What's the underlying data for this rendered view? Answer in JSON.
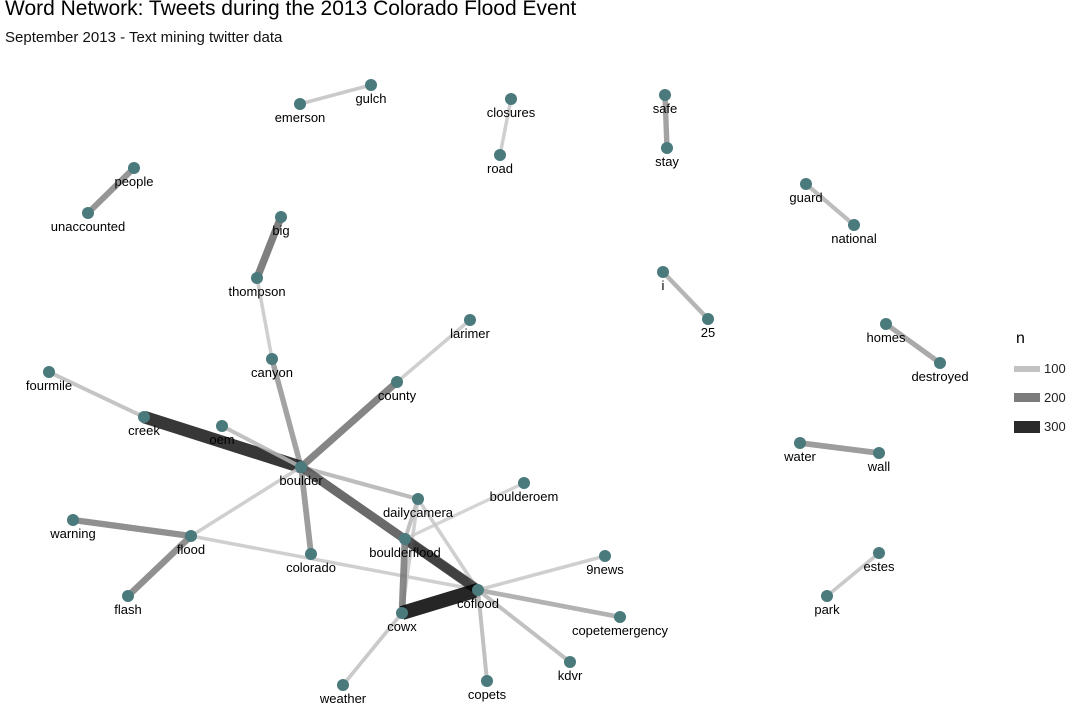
{
  "header": {
    "title": "Word Network: Tweets during the 2013 Colorado Flood Event",
    "subtitle": "September 2013 - Text mining twitter data"
  },
  "colors": {
    "node": "#4a7a7c",
    "edge_low": "#cccccc",
    "edge_high": "#000000",
    "background": "#ffffff"
  },
  "legend": {
    "title": "n",
    "items": [
      {
        "label": "100",
        "value": 100
      },
      {
        "label": "200",
        "value": 200
      },
      {
        "label": "300",
        "value": 300
      }
    ]
  },
  "network": {
    "nodes": [
      {
        "id": "emerson",
        "label": "emerson"
      },
      {
        "id": "gulch",
        "label": "gulch"
      },
      {
        "id": "closures",
        "label": "closures"
      },
      {
        "id": "road",
        "label": "road"
      },
      {
        "id": "safe",
        "label": "safe"
      },
      {
        "id": "stay",
        "label": "stay"
      },
      {
        "id": "people",
        "label": "people"
      },
      {
        "id": "unaccounted",
        "label": "unaccounted"
      },
      {
        "id": "guard",
        "label": "guard"
      },
      {
        "id": "national",
        "label": "national"
      },
      {
        "id": "big",
        "label": "big"
      },
      {
        "id": "thompson",
        "label": "thompson"
      },
      {
        "id": "i",
        "label": "i"
      },
      {
        "id": "n25",
        "label": "25"
      },
      {
        "id": "larimer",
        "label": "larimer"
      },
      {
        "id": "homes",
        "label": "homes"
      },
      {
        "id": "destroyed",
        "label": "destroyed"
      },
      {
        "id": "canyon",
        "label": "canyon"
      },
      {
        "id": "fourmile",
        "label": "fourmile"
      },
      {
        "id": "county",
        "label": "county"
      },
      {
        "id": "creek",
        "label": "creek"
      },
      {
        "id": "oem",
        "label": "oem"
      },
      {
        "id": "water",
        "label": "water"
      },
      {
        "id": "wall",
        "label": "wall"
      },
      {
        "id": "boulder",
        "label": "boulder"
      },
      {
        "id": "boulderoem",
        "label": "boulderoem"
      },
      {
        "id": "dailycamera",
        "label": "dailycamera"
      },
      {
        "id": "warning",
        "label": "warning"
      },
      {
        "id": "flood",
        "label": "flood"
      },
      {
        "id": "boulderflood",
        "label": "boulderflood"
      },
      {
        "id": "colorado",
        "label": "colorado"
      },
      {
        "id": "estes",
        "label": "estes"
      },
      {
        "id": "n9news",
        "label": "9news"
      },
      {
        "id": "coflood",
        "label": "coflood"
      },
      {
        "id": "flash",
        "label": "flash"
      },
      {
        "id": "cowx",
        "label": "cowx"
      },
      {
        "id": "park",
        "label": "park"
      },
      {
        "id": "copetemergency",
        "label": "copetemergency"
      },
      {
        "id": "kdvr",
        "label": "kdvr"
      },
      {
        "id": "weather",
        "label": "weather"
      },
      {
        "id": "copets",
        "label": "copets"
      }
    ],
    "edges": [
      {
        "source": "emerson",
        "target": "gulch",
        "n": 60
      },
      {
        "source": "closures",
        "target": "road",
        "n": 55
      },
      {
        "source": "safe",
        "target": "stay",
        "n": 110
      },
      {
        "source": "people",
        "target": "unaccounted",
        "n": 130
      },
      {
        "source": "guard",
        "target": "national",
        "n": 75
      },
      {
        "source": "big",
        "target": "thompson",
        "n": 170
      },
      {
        "source": "i",
        "target": "n25",
        "n": 85
      },
      {
        "source": "homes",
        "target": "destroyed",
        "n": 100
      },
      {
        "source": "water",
        "target": "wall",
        "n": 120
      },
      {
        "source": "estes",
        "target": "park",
        "n": 60
      },
      {
        "source": "thompson",
        "target": "canyon",
        "n": 55
      },
      {
        "source": "canyon",
        "target": "boulder",
        "n": 110
      },
      {
        "source": "larimer",
        "target": "county",
        "n": 55
      },
      {
        "source": "county",
        "target": "boulder",
        "n": 160
      },
      {
        "source": "fourmile",
        "target": "creek",
        "n": 65
      },
      {
        "source": "creek",
        "target": "boulder",
        "n": 320
      },
      {
        "source": "oem",
        "target": "boulder",
        "n": 70
      },
      {
        "source": "boulder",
        "target": "dailycamera",
        "n": 75
      },
      {
        "source": "boulder",
        "target": "colorado",
        "n": 120
      },
      {
        "source": "boulder",
        "target": "coflood",
        "n": 210
      },
      {
        "source": "boulder",
        "target": "flood",
        "n": 55
      },
      {
        "source": "warning",
        "target": "flood",
        "n": 140
      },
      {
        "source": "flood",
        "target": "flash",
        "n": 140
      },
      {
        "source": "flood",
        "target": "coflood",
        "n": 55
      },
      {
        "source": "boulderoem",
        "target": "boulderflood",
        "n": 50
      },
      {
        "source": "dailycamera",
        "target": "boulderflood",
        "n": 70
      },
      {
        "source": "dailycamera",
        "target": "coflood",
        "n": 55
      },
      {
        "source": "dailycamera",
        "target": "cowx",
        "n": 55
      },
      {
        "source": "boulderflood",
        "target": "coflood",
        "n": 250
      },
      {
        "source": "boulderflood",
        "target": "cowx",
        "n": 150
      },
      {
        "source": "cowx",
        "target": "coflood",
        "n": 360
      },
      {
        "source": "coflood",
        "target": "n9news",
        "n": 55
      },
      {
        "source": "coflood",
        "target": "copetemergency",
        "n": 90
      },
      {
        "source": "coflood",
        "target": "kdvr",
        "n": 70
      },
      {
        "source": "coflood",
        "target": "copets",
        "n": 70
      },
      {
        "source": "cowx",
        "target": "weather",
        "n": 60
      }
    ]
  }
}
